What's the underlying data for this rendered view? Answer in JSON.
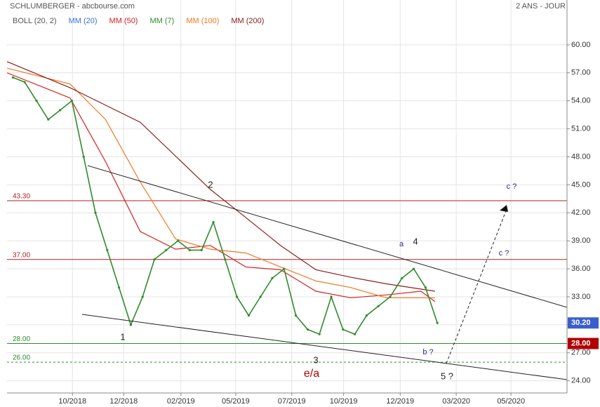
{
  "chart_data": {
    "type": "line",
    "title": "SCHLUMBERGER - abcbourse.com",
    "subtitle": "2 ANS - JOUR",
    "ylim": [
      22.7,
      64.8
    ],
    "yticks": [
      {
        "value": 24,
        "label": "24.00"
      },
      {
        "value": 27,
        "label": "27.00"
      },
      {
        "value": 30,
        "label": "30.00"
      },
      {
        "value": 33,
        "label": "33.00"
      },
      {
        "value": 36,
        "label": "36.00"
      },
      {
        "value": 39,
        "label": "39.00"
      },
      {
        "value": 42,
        "label": "42.00"
      },
      {
        "value": 45,
        "label": "45.00"
      },
      {
        "value": 48,
        "label": "48.00"
      },
      {
        "value": 51,
        "label": "51.00"
      },
      {
        "value": 54,
        "label": "54.00"
      },
      {
        "value": 57,
        "label": "57.00"
      },
      {
        "value": 60,
        "label": "60.00"
      }
    ],
    "xlim": [
      0,
      95
    ],
    "xticks": [
      {
        "value": 11.1,
        "label": "10/2018"
      },
      {
        "value": 19.8,
        "label": "12/2018"
      },
      {
        "value": 29.5,
        "label": "02/2019"
      },
      {
        "value": 38.8,
        "label": "05/2019"
      },
      {
        "value": 48.3,
        "label": "07/2019"
      },
      {
        "value": 57.1,
        "label": "10/2019"
      },
      {
        "value": 66.7,
        "label": "12/2019"
      },
      {
        "value": 76.2,
        "label": "03/2020"
      },
      {
        "value": 85.5,
        "label": "05/2020"
      }
    ],
    "grid": true,
    "price": {
      "color": "#2e8b2e",
      "x": [
        1,
        3,
        5,
        7,
        9,
        11,
        13,
        15,
        17,
        19,
        21,
        23,
        25,
        27,
        29,
        31,
        33,
        35,
        37,
        39,
        41,
        43,
        45,
        47,
        49,
        51,
        53,
        55,
        57,
        59,
        61,
        63,
        65,
        67,
        69,
        71,
        73
      ],
      "values": [
        56.5,
        56,
        54,
        52,
        53,
        54,
        48,
        42,
        38,
        34,
        30,
        33,
        37,
        38,
        39,
        38,
        38,
        41,
        37,
        33,
        31,
        33,
        35,
        36,
        31,
        29.5,
        29,
        33,
        29.5,
        29,
        31,
        32,
        33,
        35,
        36,
        34,
        30.2
      ]
    },
    "series": [
      {
        "name": "BOLL (20, 2)",
        "color": "#555555"
      },
      {
        "name": "MM (20)",
        "color": "#3a6fd8"
      },
      {
        "name": "MM (50)",
        "color": "#d62020",
        "x": [
          0,
          10.7,
          16.7,
          22.6,
          28.6,
          34.5,
          40.5,
          46.4,
          52.4,
          58.3,
          64.3,
          70.2,
          72.6
        ],
        "values": [
          57,
          54.3,
          47.5,
          40,
          38.1,
          38.5,
          36.2,
          35.9,
          33.6,
          32.9,
          33.2,
          33.6,
          32.5
        ]
      },
      {
        "name": "MM (7)",
        "color": "#2e8b2e"
      },
      {
        "name": "MM (100)",
        "color": "#f07820",
        "x": [
          0,
          10.7,
          16.7,
          22.6,
          28.6,
          34.5,
          40.5,
          46.4,
          52.4,
          58.3,
          64.3,
          72.6
        ],
        "values": [
          57.5,
          55.8,
          52,
          45.3,
          39.2,
          38.1,
          37.7,
          36.2,
          34.7,
          34,
          32.9,
          32.9
        ]
      },
      {
        "name": "MM (200)",
        "color": "#8b2020",
        "x": [
          0,
          10.7,
          22.6,
          34.5,
          40.5,
          46.4,
          52.4,
          58.3,
          64.3,
          72.6
        ],
        "values": [
          58.2,
          55.4,
          51.7,
          44.5,
          41.5,
          38.5,
          35.9,
          35.1,
          34.4,
          33.6
        ]
      }
    ],
    "levels": [
      {
        "value": 43.3,
        "label": "43.30",
        "color": "#b22222"
      },
      {
        "value": 37,
        "label": "37.00",
        "color": "#b22222"
      },
      {
        "value": 28,
        "label": "28.00",
        "color": "#2e8b2e"
      },
      {
        "value": 26,
        "label": "26.00",
        "color": "#2e8b2e",
        "dashed": true
      }
    ],
    "price_tags": [
      {
        "value": 30.2,
        "label": "30.20",
        "color": "#3a5fcd"
      },
      {
        "value": 28,
        "label": "28.00",
        "color": "#b00000"
      }
    ],
    "annotations": [
      "1",
      "2",
      "3",
      "4",
      "a",
      "b ?",
      "c ?",
      "c ?",
      "5 ?",
      "e/a"
    ]
  }
}
